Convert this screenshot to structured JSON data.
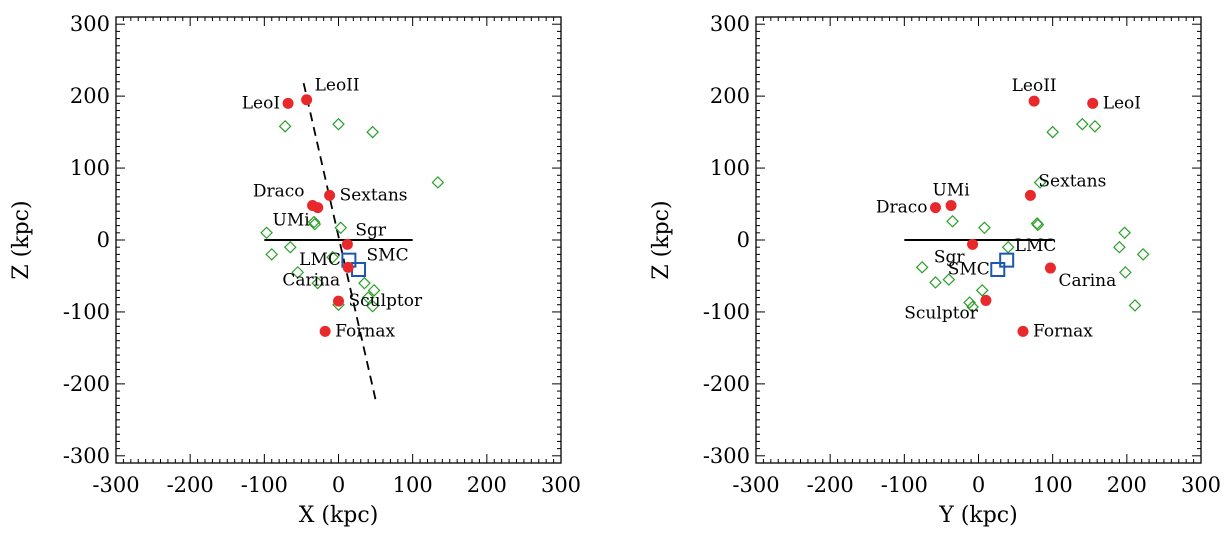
{
  "colors": {
    "satellite": "#e8282a",
    "cloud": "#1b56b0",
    "candidate": "#2aa02a",
    "line": "#000000"
  },
  "chart_data": [
    {
      "type": "scatter",
      "xlabel": "X (kpc)",
      "ylabel": "Z (kpc)",
      "xlim": [
        -300,
        300
      ],
      "ylim": [
        -310,
        310
      ],
      "xticks": [
        -300,
        -200,
        -100,
        0,
        100,
        200,
        300
      ],
      "yticks": [
        -300,
        -200,
        -100,
        0,
        100,
        200,
        300
      ],
      "xtick_labels": [
        "-300",
        "-200",
        "-100",
        "0",
        "100",
        "200",
        "300"
      ],
      "ytick_labels": [
        "-300",
        "-200",
        "-100",
        "0",
        "100",
        "200",
        "300"
      ],
      "grid": false,
      "satellites": [
        {
          "name": "LeoI",
          "x": -68,
          "y": 190,
          "label_pos": "left"
        },
        {
          "name": "LeoII",
          "x": -43,
          "y": 195,
          "label_pos": "above-right"
        },
        {
          "name": "Draco",
          "x": -35,
          "y": 48,
          "label_pos": "above-left"
        },
        {
          "name": "UMi",
          "x": -28,
          "y": 45,
          "label_pos": "below-left"
        },
        {
          "name": "Sextans",
          "x": -12,
          "y": 62,
          "label_pos": "right"
        },
        {
          "name": "Sgr",
          "x": 12,
          "y": -6,
          "label_pos": "above-right"
        },
        {
          "name": "Carina",
          "x": 13,
          "y": -38,
          "label_pos": "below-left"
        },
        {
          "name": "Sculptor",
          "x": 0,
          "y": -85,
          "label_pos": "right"
        },
        {
          "name": "Fornax",
          "x": -18,
          "y": -127,
          "label_pos": "right"
        }
      ],
      "clouds": [
        {
          "name": "LMC",
          "x": 14,
          "y": -28,
          "label_pos": "left"
        },
        {
          "name": "SMC",
          "x": 27,
          "y": -41,
          "label_pos": "above-right"
        }
      ],
      "candidates": [
        {
          "x": -72,
          "y": 158
        },
        {
          "x": 0,
          "y": 161
        },
        {
          "x": 46,
          "y": 150
        },
        {
          "x": 134,
          "y": 80
        },
        {
          "x": -33,
          "y": 25
        },
        {
          "x": -32,
          "y": 22
        },
        {
          "x": 3,
          "y": 17
        },
        {
          "x": -97,
          "y": 10
        },
        {
          "x": -90,
          "y": -20
        },
        {
          "x": -65,
          "y": -10
        },
        {
          "x": -55,
          "y": -45
        },
        {
          "x": -8,
          "y": -24
        },
        {
          "x": -28,
          "y": -60
        },
        {
          "x": 35,
          "y": -60
        },
        {
          "x": 48,
          "y": -70
        },
        {
          "x": 40,
          "y": -80
        },
        {
          "x": 46,
          "y": -92
        },
        {
          "x": 0,
          "y": -90
        }
      ],
      "horizontal_line": {
        "x": [
          -100,
          100
        ],
        "y": 0
      },
      "fit_line": {
        "x": [
          -47,
          50
        ],
        "y": [
          218,
          -222
        ]
      }
    },
    {
      "type": "scatter",
      "xlabel": "Y (kpc)",
      "ylabel": "Z (kpc)",
      "xlim": [
        -300,
        300
      ],
      "ylim": [
        -310,
        310
      ],
      "xticks": [
        -300,
        -200,
        -100,
        0,
        100,
        200,
        300
      ],
      "yticks": [
        -300,
        -200,
        -100,
        0,
        100,
        200,
        300
      ],
      "xtick_labels": [
        "-300",
        "-200",
        "-100",
        "0",
        "100",
        "200",
        "300"
      ],
      "ytick_labels": [
        "-300",
        "-200",
        "-100",
        "0",
        "100",
        "200",
        "300"
      ],
      "grid": false,
      "satellites": [
        {
          "name": "LeoII",
          "x": 75,
          "y": 193,
          "label_pos": "above"
        },
        {
          "name": "LeoI",
          "x": 154,
          "y": 190,
          "label_pos": "right"
        },
        {
          "name": "Sextans",
          "x": 70,
          "y": 62,
          "label_pos": "above-right"
        },
        {
          "name": "UMi",
          "x": -37,
          "y": 48,
          "label_pos": "above"
        },
        {
          "name": "Draco",
          "x": -58,
          "y": 45,
          "label_pos": "left"
        },
        {
          "name": "Sgr",
          "x": -8,
          "y": -6,
          "label_pos": "below-left"
        },
        {
          "name": "Carina",
          "x": 97,
          "y": -39,
          "label_pos": "below-right"
        },
        {
          "name": "Sculptor",
          "x": 10,
          "y": -84,
          "label_pos": "below-left"
        },
        {
          "name": "Fornax",
          "x": 60,
          "y": -127,
          "label_pos": "right"
        }
      ],
      "clouds": [
        {
          "name": "LMC",
          "x": 38,
          "y": -28,
          "label_pos": "above-right"
        },
        {
          "name": "SMC",
          "x": 26,
          "y": -41,
          "label_pos": "left"
        }
      ],
      "candidates": [
        {
          "x": 140,
          "y": 161
        },
        {
          "x": 157,
          "y": 158
        },
        {
          "x": 100,
          "y": 150
        },
        {
          "x": 83,
          "y": 80
        },
        {
          "x": 79,
          "y": 23
        },
        {
          "x": 80,
          "y": 21
        },
        {
          "x": -35,
          "y": 26
        },
        {
          "x": 8,
          "y": 17
        },
        {
          "x": 197,
          "y": 10
        },
        {
          "x": 190,
          "y": -10
        },
        {
          "x": 222,
          "y": -20
        },
        {
          "x": 198,
          "y": -45
        },
        {
          "x": 40,
          "y": -10
        },
        {
          "x": -76,
          "y": -38
        },
        {
          "x": -58,
          "y": -59
        },
        {
          "x": -40,
          "y": -55
        },
        {
          "x": -12,
          "y": -87
        },
        {
          "x": -8,
          "y": -93
        },
        {
          "x": 5,
          "y": -70
        },
        {
          "x": 211,
          "y": -91
        }
      ],
      "horizontal_line": {
        "x": [
          -100,
          100
        ],
        "y": 0
      }
    }
  ]
}
